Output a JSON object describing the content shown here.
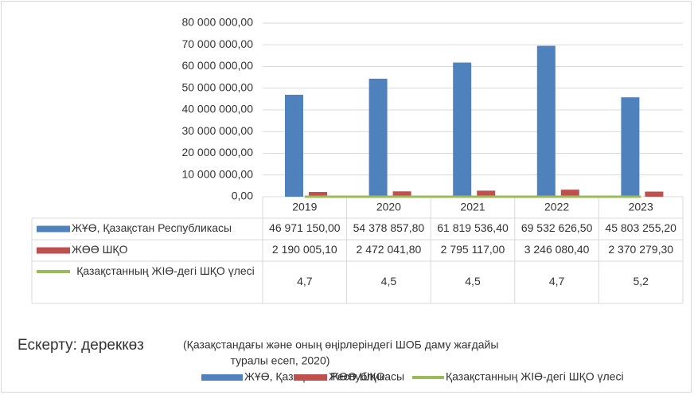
{
  "chart_data": {
    "type": "bar",
    "categories": [
      "2019",
      "2020",
      "2021",
      "2022",
      "2023"
    ],
    "series": [
      {
        "name": "ЖҰӨ, Қазақстан Республикасы",
        "color": "#4f81bd",
        "type": "bar",
        "values": [
          46971150.0,
          54378857.8,
          61819536.4,
          69532626.5,
          45803255.2
        ],
        "value_labels": [
          "46 971 150,00",
          "54 378 857,80",
          "61 819 536,40",
          "69 532 626,50",
          "45 803 255,20"
        ]
      },
      {
        "name": "ЖӨӨ ШҚО",
        "color": "#c0504d",
        "type": "bar",
        "values": [
          2190005.1,
          2472041.8,
          2795117.0,
          3246080.4,
          2370279.3
        ],
        "value_labels": [
          "2 190 005,10",
          "2 472 041,80",
          "2 795 117,00",
          "3 246 080,40",
          "2 370 279,30"
        ]
      },
      {
        "name": "Қазақстанның ЖІӨ-дегі ШҚО үлесі",
        "color": "#9bbb59",
        "type": "line",
        "values": [
          4.7,
          4.5,
          4.5,
          4.7,
          5.2
        ],
        "value_labels": [
          "4,7",
          "4,5",
          "4,5",
          "4,7",
          "5,2"
        ]
      }
    ],
    "ylim": [
      0,
      80000000
    ],
    "yticks": [
      {
        "value": 0,
        "label": "0,00"
      },
      {
        "value": 10000000,
        "label": "10 000 000,00"
      },
      {
        "value": 20000000,
        "label": "20 000 000,00"
      },
      {
        "value": 30000000,
        "label": "30 000 000,00"
      },
      {
        "value": 40000000,
        "label": "40 000 000,00"
      },
      {
        "value": 50000000,
        "label": "50 000 000,00"
      },
      {
        "value": 60000000,
        "label": "60 000 000,00"
      },
      {
        "value": 70000000,
        "label": "70 000 000,00"
      },
      {
        "value": 80000000,
        "label": "80 000 000,00"
      }
    ],
    "grid": true,
    "legend": "bottom",
    "note_label": "Ескерту: дереккөз",
    "note_text": [
      "(Қазақстандағы және оның өңірлеріндегі ШОБ даму жағдайы",
      "туралы есеп, 2020)"
    ]
  }
}
